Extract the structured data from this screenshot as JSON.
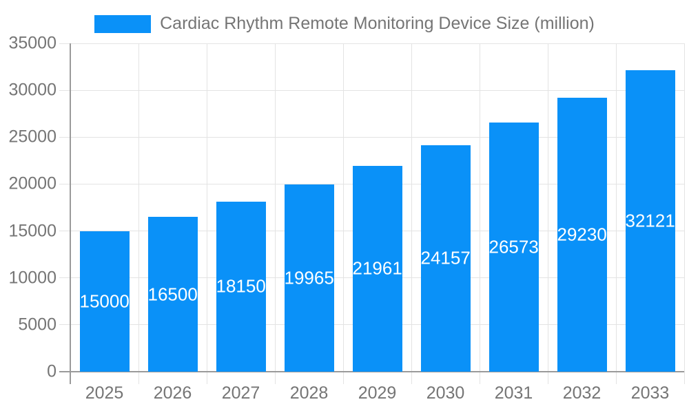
{
  "chart_data": {
    "type": "bar",
    "title": "Cardiac Rhythm Remote Monitoring Device Size (million)",
    "categories": [
      "2025",
      "2026",
      "2027",
      "2028",
      "2029",
      "2030",
      "2031",
      "2032",
      "2033"
    ],
    "values": [
      15000,
      16500,
      18150,
      19965,
      21961,
      24157,
      26573,
      29230,
      32121
    ],
    "xlabel": "",
    "ylabel": "",
    "ylim": [
      0,
      35000
    ],
    "yticks": [
      0,
      5000,
      10000,
      15000,
      20000,
      25000,
      30000,
      35000
    ],
    "grid": true,
    "legend_position": "top",
    "value_labels": "inside-center",
    "colors": {
      "bar": "#0a91f8",
      "value_label": "#ffffff",
      "axis_text": "#757575",
      "axis_line": "#9a9a9a",
      "gridline": "#e3e3e3",
      "background": "#ffffff"
    }
  }
}
